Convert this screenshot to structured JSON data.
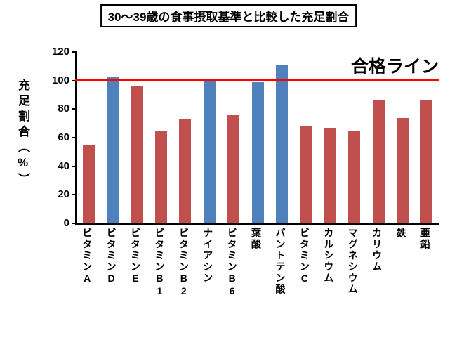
{
  "title": "30〜39歳の食事摂取基準と比較した充足割合",
  "y_axis_label": "充足割合（%）",
  "pass_line_label": "合格ライン",
  "colors": {
    "bar_red": "#c0504d",
    "bar_blue": "#4f81bd",
    "pass_line": "#ff0000",
    "axis": "#000000"
  },
  "chart_data": {
    "type": "bar",
    "title": "30〜39歳の食事摂取基準と比較した充足割合",
    "xlabel": "",
    "ylabel": "充足割合（%）",
    "ylim": [
      0,
      120
    ],
    "yticks": [
      0,
      20,
      40,
      60,
      80,
      100,
      120
    ],
    "grid": false,
    "legend": false,
    "categories": [
      "ビタミンA",
      "ビタミンD",
      "ビタミンE",
      "ビタミンB1",
      "ビタミンB2",
      "ナイアシン",
      "ビタミンB6",
      "葉酸",
      "パントテン酸",
      "ビタミンC",
      "カルシウム",
      "マグネシウム",
      "カリウム",
      "鉄",
      "亜鉛"
    ],
    "values": [
      55,
      103,
      96,
      65,
      73,
      101,
      76,
      99,
      111,
      68,
      67,
      65,
      86,
      74,
      86
    ],
    "bar_colors": [
      "#c0504d",
      "#4f81bd",
      "#c0504d",
      "#c0504d",
      "#c0504d",
      "#4f81bd",
      "#c0504d",
      "#4f81bd",
      "#4f81bd",
      "#c0504d",
      "#c0504d",
      "#c0504d",
      "#c0504d",
      "#c0504d",
      "#c0504d"
    ],
    "reference_line": {
      "value": 100,
      "label": "合格ライン",
      "color": "#ff0000"
    }
  }
}
